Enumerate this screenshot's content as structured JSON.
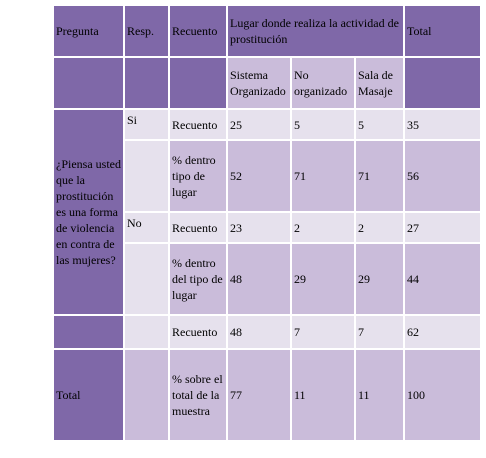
{
  "table": {
    "header": {
      "pregunta": "Pregunta",
      "resp": "Resp.",
      "recuento": "Recuento",
      "lugar": "Lugar donde realiza la actividad de prostitución",
      "total": "Total"
    },
    "subheader": {
      "sistema": "Sistema Organizado",
      "no_organizado": "No organizado",
      "sala": "Sala de Masaje"
    },
    "question": "¿Piensa usted que la prostitución  es una forma de violencia en contra de las mujeres?",
    "si": {
      "resp": "Si",
      "recuento_label": "Recuento",
      "recuento": [
        "25",
        "5",
        "5",
        "35"
      ],
      "pct_label": "% dentro tipo de lugar",
      "pct": [
        "52",
        "71",
        "71",
        "56"
      ]
    },
    "no": {
      "resp": "No",
      "recuento_label": "Recuento",
      "recuento": [
        "23",
        "2",
        "2",
        "27"
      ],
      "pct_label": "% dentro del tipo de lugar",
      "pct": [
        "48",
        "29",
        "29",
        "44"
      ]
    },
    "totals": {
      "recuento_label": "Recuento",
      "recuento": [
        "48",
        "7",
        "7",
        "62"
      ],
      "label": "Total",
      "pct_label": "% sobre el total de la muestra",
      "pct": [
        "77",
        "11",
        "11",
        "100"
      ]
    }
  }
}
